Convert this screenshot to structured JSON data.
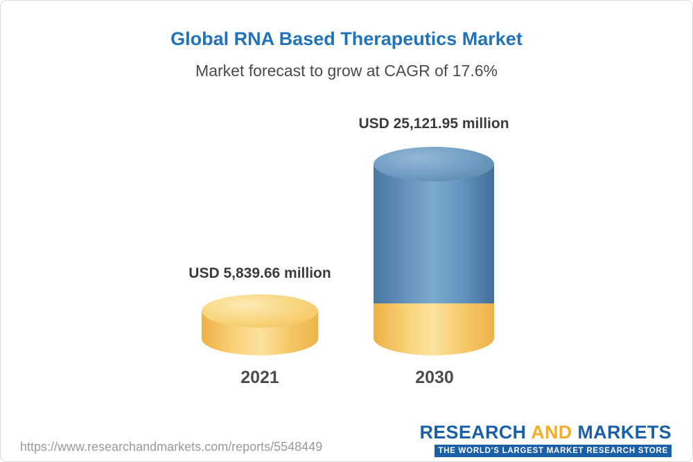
{
  "title": "Global RNA Based Therapeutics Market",
  "subtitle": "Market forecast to grow at CAGR of 17.6%",
  "chart_data": {
    "type": "bar",
    "style": "3d-cylinder",
    "categories": [
      "2021",
      "2030"
    ],
    "values": [
      5839.66,
      25121.95
    ],
    "value_labels": [
      "USD 5,839.66 million",
      "USD 25,121.95 million"
    ],
    "unit": "USD million",
    "cagr_percent": 17.6,
    "ylim": [
      0,
      25122
    ],
    "grid": false,
    "legend": "none",
    "bar_colors": [
      "#f6c65e",
      "#6496bf"
    ],
    "stacked_note": "2030 bar shows the 2021 value as a gold base segment with blue growth above it"
  },
  "footer": {
    "url": "https://www.researchandmarkets.com/reports/5548449",
    "logo": {
      "research": "RESEARCH",
      "and": "AND",
      "markets": "MARKETS",
      "tagline": "THE WORLD'S LARGEST MARKET RESEARCH STORE"
    }
  },
  "colors": {
    "title": "#2173b9",
    "subtitle": "#4a4a4a",
    "value_label": "#3b3b3b",
    "year_label": "#4c4c4c",
    "gold": "#f6c65e",
    "blue": "#6496bf",
    "logo_blue": "#1b60a6",
    "logo_gold": "#f0ae2c",
    "url_text": "#9a9a9a"
  }
}
